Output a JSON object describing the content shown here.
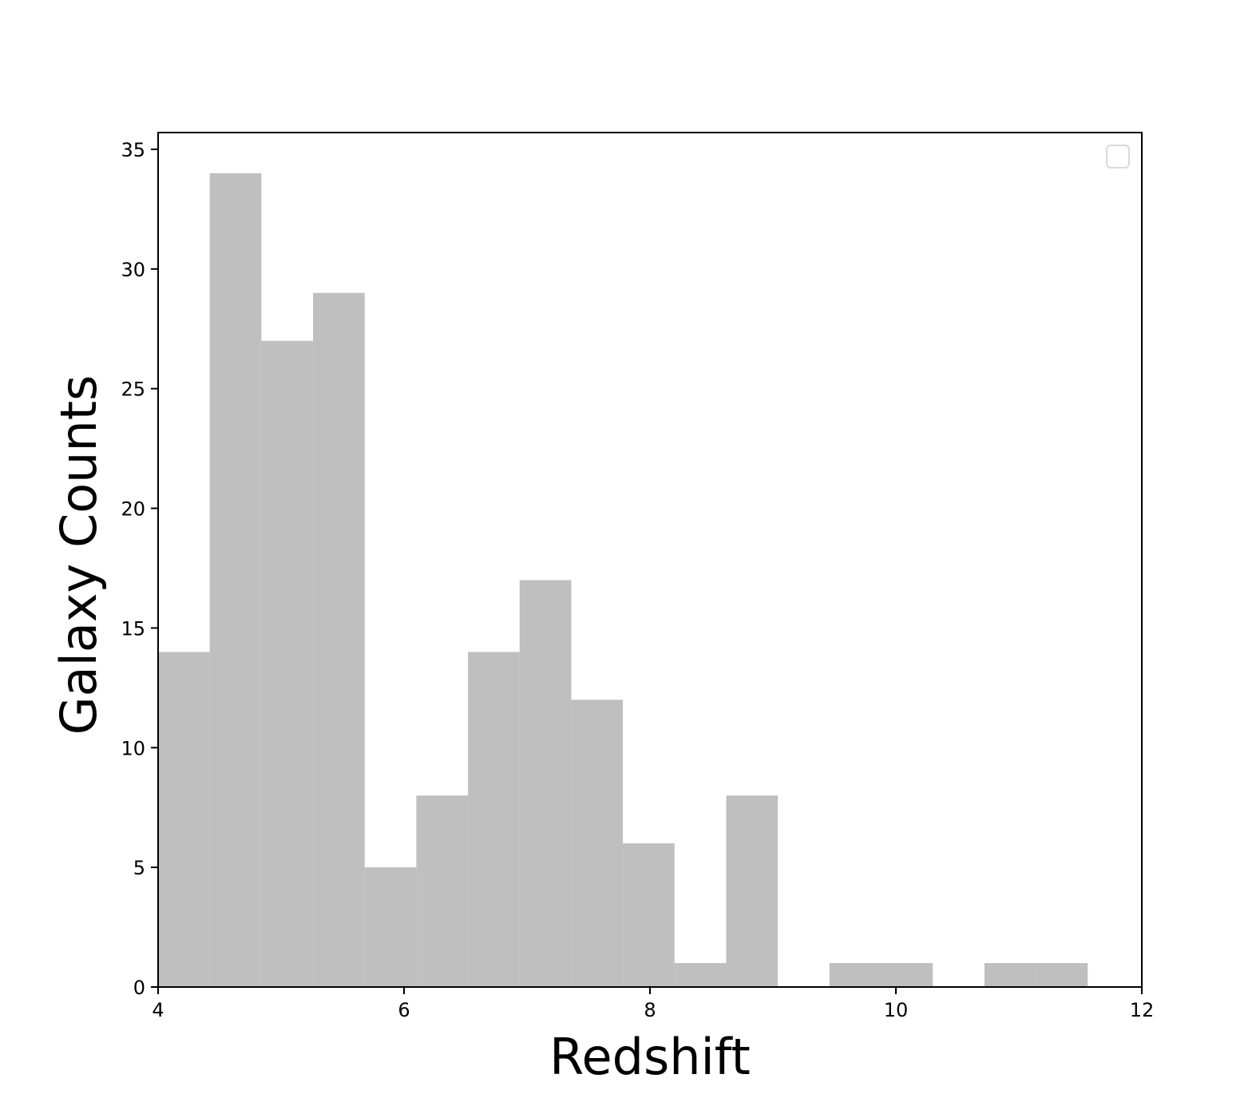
{
  "chart_data": {
    "type": "bar",
    "title": "",
    "xlabel": "Redshift",
    "ylabel": "Galaxy Counts",
    "xlim": [
      4,
      12
    ],
    "ylim": [
      0,
      35.7
    ],
    "x_ticks": [
      "4",
      "6",
      "8",
      "10",
      "12"
    ],
    "y_ticks": [
      "0",
      "5",
      "10",
      "15",
      "20",
      "25",
      "30",
      "35"
    ],
    "bin_edges": [
      4.0,
      4.42,
      4.84,
      5.26,
      5.68,
      6.1,
      6.52,
      6.94,
      7.36,
      7.78,
      8.2,
      8.62,
      9.04,
      9.46,
      9.88,
      10.3,
      10.72,
      11.14,
      11.56
    ],
    "values": [
      14,
      34,
      27,
      29,
      5,
      8,
      14,
      17,
      12,
      6,
      1,
      8,
      0,
      1,
      1,
      0,
      1,
      1
    ],
    "bar_color": "#bfbfbf",
    "grid": false,
    "legend": {
      "placement": "top-right",
      "entries": []
    }
  }
}
